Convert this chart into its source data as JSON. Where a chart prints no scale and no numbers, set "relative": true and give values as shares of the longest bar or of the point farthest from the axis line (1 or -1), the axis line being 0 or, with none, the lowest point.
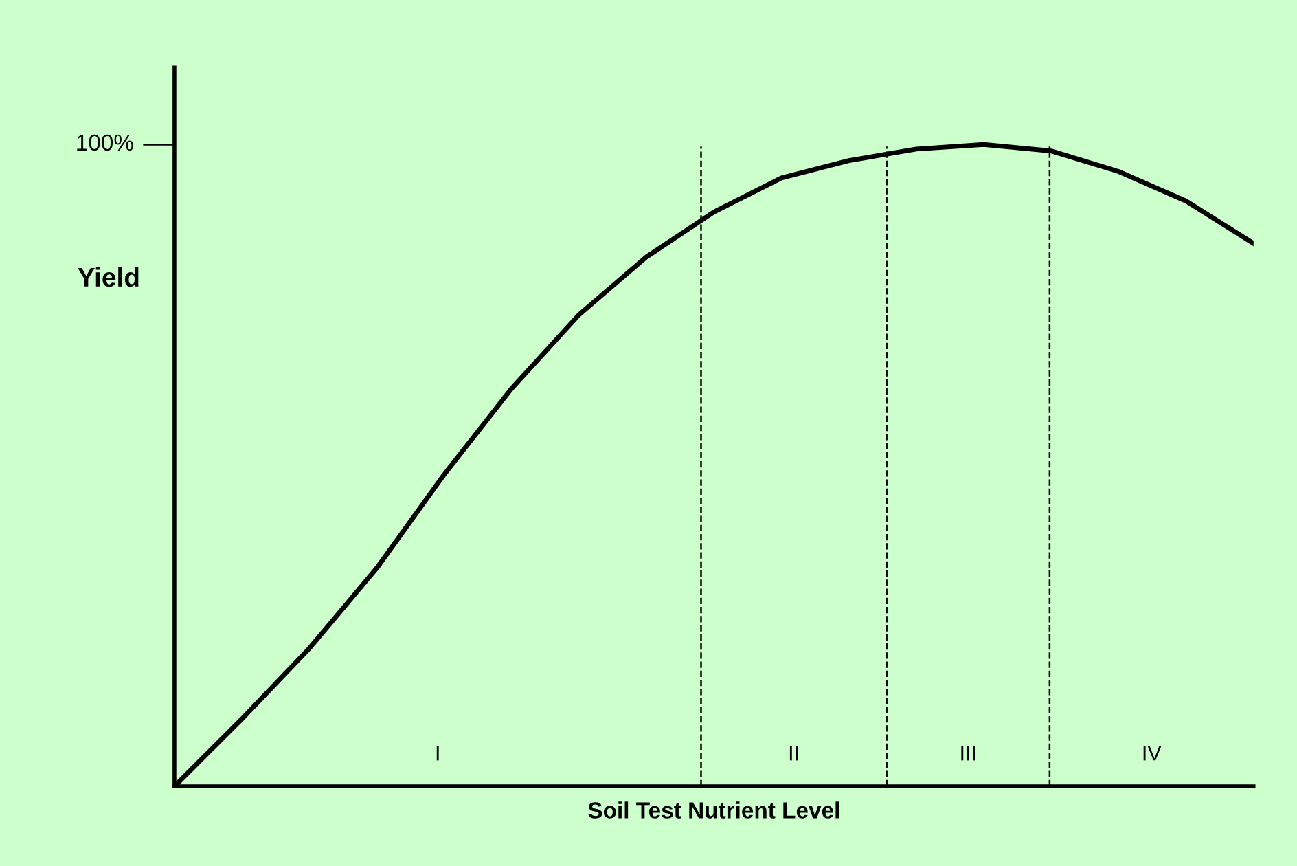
{
  "chart_data": {
    "type": "line",
    "relative": true,
    "xlabel": "Soil Test Nutrient Level",
    "ylabel": "Yield",
    "categories": [
      null,
      null,
      null,
      null,
      null,
      null,
      null,
      null,
      null,
      null,
      null,
      null,
      null,
      null,
      null,
      null,
      null
    ],
    "series": [
      {
        "color": "#000000",
        "values": [
          0,
          0.105,
          0.215,
          0.34,
          0.486,
          0.62,
          0.735,
          0.825,
          0.895,
          0.948,
          0.975,
          0.993,
          1.0,
          0.99,
          0.958,
          0.912,
          0.846
        ]
      }
    ],
    "annotations": [
      "100%",
      "I",
      "II",
      "III",
      "IV"
    ],
    "line_style": "solid"
  }
}
